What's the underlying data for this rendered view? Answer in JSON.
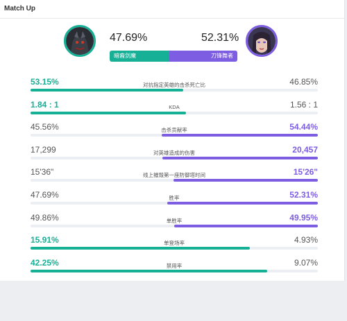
{
  "header": {
    "title": "Match Up"
  },
  "matchup": {
    "left": {
      "name": "暗裔剑魔",
      "win_pct": "47.69%",
      "color": "#15b096",
      "avatar_icon": "champion-portrait-dark"
    },
    "right": {
      "name": "刀锋舞者",
      "win_pct": "52.31%",
      "color": "#7d5de1",
      "avatar_icon": "champion-portrait-light"
    }
  },
  "stats": [
    {
      "label": "对抗指定英雄的击杀死亡比",
      "left": "53.15%",
      "right": "46.85%",
      "winner": "left",
      "left_share": 0.5315,
      "right_share": 0.4685
    },
    {
      "label": "KDA",
      "left": "1.84 : 1",
      "right": "1.56 : 1",
      "winner": "left",
      "left_share": 0.541,
      "right_share": 0.459
    },
    {
      "label": "击杀贡献率",
      "left": "45.56%",
      "right": "54.44%",
      "winner": "right",
      "left_share": 0.4556,
      "right_share": 0.5444
    },
    {
      "label": "对英雄造成的伤害",
      "left": "17,299",
      "right": "20,457",
      "winner": "right",
      "left_share": 0.458,
      "right_share": 0.542
    },
    {
      "label": "线上摧毁第一座防御塔时间",
      "left": "15'36\"",
      "right": "15'26\"",
      "winner": "right",
      "left_share": 0.497,
      "right_share": 0.503
    },
    {
      "label": "胜率",
      "left": "47.69%",
      "right": "52.31%",
      "winner": "right",
      "left_share": 0.4769,
      "right_share": 0.5231
    },
    {
      "label": "单胜率",
      "left": "49.86%",
      "right": "49.95%",
      "winner": "right",
      "left_share": 0.4986,
      "right_share": 0.4995
    },
    {
      "label": "单登场率",
      "left": "15.91%",
      "right": "4.93%",
      "winner": "left",
      "left_share": 0.7634,
      "right_share": 0.2366
    },
    {
      "label": "禁用率",
      "left": "42.25%",
      "right": "9.07%",
      "winner": "left",
      "left_share": 0.8232,
      "right_share": 0.1768
    }
  ]
}
